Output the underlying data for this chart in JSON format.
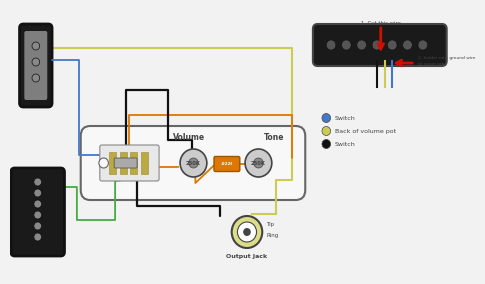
{
  "bg_color": "#f2f2f2",
  "colors": {
    "black": "#111111",
    "white": "#ffffff",
    "blue": "#4477cc",
    "yellow": "#cccc55",
    "yellow_light": "#dddd88",
    "green": "#44aa44",
    "orange": "#dd7700",
    "red": "#cc1100",
    "gray": "#888888",
    "dark_gray": "#444444",
    "mid_gray": "#666666",
    "light_gray": "#cccccc",
    "pickup_body": "#1a1a1a",
    "pickup_cover": "#aaaaaa",
    "pickguard": "#f8f8f8",
    "pot_body": "#cccccc",
    "switch_gold": "#bbaa44",
    "switch_metal": "#aaaaaa",
    "cap_color": "#dd7700"
  },
  "legend": {
    "items": [
      "Switch",
      "Back of volume pot",
      "Switch"
    ],
    "colors": [
      "#4477cc",
      "#cccc55",
      "#111111"
    ]
  },
  "inset_text1": "1. Cut this wire",
  "inset_text2": "2. Solder new ground wire\nto cover tab",
  "volume_label": "Volume",
  "tone_label": "Tone",
  "pot_label": "250K",
  "output_jack_label": "Output Jack",
  "tip_label": "Tip",
  "ring_label": "Ring"
}
